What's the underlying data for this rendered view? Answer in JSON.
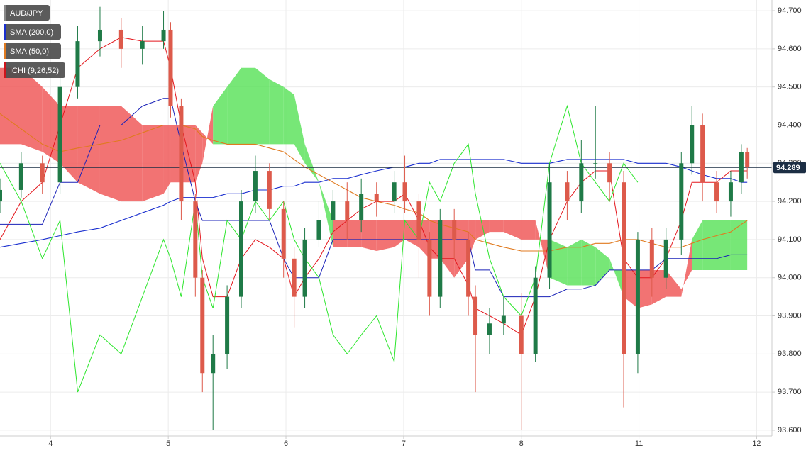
{
  "chart_data": {
    "type": "candlestick",
    "symbol": "AUD/JPY",
    "last_price": 94.289,
    "grid": true,
    "legend_position": "top-left",
    "up_color": "#1f7a47",
    "down_color": "#dd5a4b",
    "xlim": [
      -0.43,
      6.13
    ],
    "ylim": [
      93.585,
      94.728
    ],
    "xticks": [
      {
        "value": 0,
        "label": "4"
      },
      {
        "value": 1,
        "label": "5"
      },
      {
        "value": 2,
        "label": "6"
      },
      {
        "value": 3,
        "label": "7"
      },
      {
        "value": 4,
        "label": "8"
      },
      {
        "value": 5,
        "label": "11"
      },
      {
        "value": 6,
        "label": "12"
      }
    ],
    "yticks": [
      {
        "value": 93.6,
        "label": "93.600"
      },
      {
        "value": 93.7,
        "label": "93.700"
      },
      {
        "value": 93.8,
        "label": "93.800"
      },
      {
        "value": 93.9,
        "label": "93.900"
      },
      {
        "value": 94.0,
        "label": "94.000"
      },
      {
        "value": 94.1,
        "label": "94.100"
      },
      {
        "value": 94.2,
        "label": "94.200"
      },
      {
        "value": 94.3,
        "label": "94.300"
      },
      {
        "value": 94.4,
        "label": "94.400"
      },
      {
        "value": 94.5,
        "label": "94.500"
      },
      {
        "value": 94.6,
        "label": "94.600"
      },
      {
        "value": 94.7,
        "label": "94.700"
      }
    ],
    "x": [
      -0.43,
      -0.25,
      -0.07,
      0.08,
      0.23,
      0.42,
      0.6,
      0.78,
      0.96,
      1.02,
      1.11,
      1.23,
      1.29,
      1.38,
      1.5,
      1.62,
      1.74,
      1.86,
      1.98,
      2.07,
      2.16,
      2.28,
      2.4,
      2.52,
      2.64,
      2.77,
      2.92,
      3.01,
      3.13,
      3.22,
      3.31,
      3.43,
      3.55,
      3.61,
      3.73,
      3.85,
      4.0,
      4.12,
      4.24,
      4.39,
      4.51,
      4.63,
      4.75,
      4.87,
      4.99,
      5.11,
      5.23,
      5.36,
      5.45,
      5.54,
      5.66,
      5.78,
      5.87,
      5.92
    ],
    "open": [
      94.2,
      94.23,
      94.3,
      94.25,
      94.5,
      94.62,
      94.65,
      94.6,
      94.62,
      94.65,
      94.45,
      94.2,
      94.0,
      93.75,
      93.8,
      93.95,
      94.2,
      94.28,
      94.18,
      94.05,
      93.95,
      94.1,
      94.15,
      94.2,
      94.15,
      94.22,
      94.2,
      94.25,
      94.2,
      94.1,
      93.95,
      94.15,
      94.1,
      93.95,
      93.85,
      93.88,
      93.9,
      93.8,
      94.0,
      94.25,
      94.2,
      94.3,
      94.3,
      94.25,
      93.8,
      94.1,
      94.0,
      94.1,
      94.3,
      94.4,
      94.25,
      94.2,
      94.25,
      94.33
    ],
    "high": [
      94.26,
      94.33,
      94.32,
      94.54,
      94.66,
      94.71,
      94.68,
      94.66,
      94.7,
      94.67,
      94.47,
      94.22,
      94.02,
      93.85,
      93.98,
      94.23,
      94.32,
      94.3,
      94.2,
      94.08,
      94.13,
      94.2,
      94.23,
      94.25,
      94.26,
      94.25,
      94.28,
      94.32,
      94.22,
      94.12,
      94.18,
      94.18,
      94.12,
      93.98,
      93.92,
      93.95,
      93.96,
      94.03,
      94.3,
      94.28,
      94.36,
      94.45,
      94.33,
      94.28,
      94.12,
      94.13,
      94.13,
      94.33,
      94.45,
      94.43,
      94.28,
      94.28,
      94.35,
      94.34
    ],
    "low": [
      94.17,
      94.21,
      94.22,
      94.22,
      94.47,
      94.58,
      94.55,
      94.56,
      94.6,
      94.42,
      94.15,
      93.95,
      93.7,
      93.6,
      93.76,
      93.92,
      94.17,
      94.15,
      94.0,
      93.87,
      93.92,
      94.08,
      94.12,
      94.1,
      94.12,
      94.16,
      94.17,
      94.17,
      94.0,
      93.9,
      93.92,
      94.05,
      93.9,
      93.7,
      93.8,
      93.85,
      93.6,
      93.78,
      93.97,
      94.15,
      94.17,
      94.26,
      94.2,
      93.66,
      93.75,
      93.95,
      93.97,
      94.06,
      94.27,
      94.2,
      94.17,
      94.16,
      94.22,
      94.26
    ],
    "close": [
      94.23,
      94.3,
      94.25,
      94.5,
      94.62,
      94.65,
      94.6,
      94.62,
      94.65,
      94.45,
      94.2,
      94.0,
      93.75,
      93.8,
      93.95,
      94.2,
      94.28,
      94.18,
      94.05,
      93.95,
      94.1,
      94.15,
      94.2,
      94.15,
      94.22,
      94.2,
      94.25,
      94.2,
      94.1,
      93.95,
      94.15,
      94.1,
      93.95,
      93.85,
      93.88,
      93.9,
      93.8,
      94.0,
      94.25,
      94.2,
      94.3,
      94.3,
      94.25,
      93.8,
      94.1,
      94.0,
      94.1,
      94.3,
      94.4,
      94.25,
      94.2,
      94.25,
      94.33,
      94.29
    ],
    "indicators": [
      {
        "name": "SMA (200,0)",
        "color": "#1a2fcf",
        "values": [
          94.08,
          94.09,
          94.1,
          94.11,
          94.12,
          94.13,
          94.15,
          94.17,
          94.19,
          94.2,
          94.21,
          94.21,
          94.21,
          94.21,
          94.22,
          94.22,
          94.23,
          94.23,
          94.24,
          94.24,
          94.25,
          94.25,
          94.26,
          94.26,
          94.27,
          94.28,
          94.29,
          94.29,
          94.3,
          94.3,
          94.31,
          94.31,
          94.31,
          94.31,
          94.31,
          94.31,
          94.3,
          94.3,
          94.3,
          94.31,
          94.31,
          94.31,
          94.31,
          94.31,
          94.3,
          94.3,
          94.3,
          94.29,
          94.28,
          94.27,
          94.26,
          94.26,
          94.25,
          94.25
        ]
      },
      {
        "name": "SMA (50,0)",
        "color": "#e07a1f",
        "values": [
          94.43,
          94.39,
          94.35,
          94.33,
          94.34,
          94.35,
          94.36,
          94.38,
          94.4,
          94.4,
          94.4,
          94.39,
          94.37,
          94.36,
          94.35,
          94.35,
          94.35,
          94.34,
          94.33,
          94.31,
          94.29,
          94.27,
          94.25,
          94.23,
          94.21,
          94.2,
          94.19,
          94.18,
          94.17,
          94.15,
          94.14,
          94.13,
          94.12,
          94.1,
          94.09,
          94.08,
          94.07,
          94.07,
          94.07,
          94.08,
          94.08,
          94.09,
          94.09,
          94.1,
          94.1,
          94.09,
          94.08,
          94.08,
          94.09,
          94.1,
          94.11,
          94.12,
          94.14,
          94.15
        ]
      },
      {
        "name": "ICHI (9,26,52)",
        "color": "#d0141b",
        "lines": [
          {
            "color": "#e3161c",
            "values": [
              94.1,
              94.2,
              94.25,
              94.4,
              94.55,
              94.6,
              94.63,
              94.62,
              94.62,
              94.55,
              94.4,
              94.25,
              94.05,
              93.95,
              93.95,
              94.05,
              94.1,
              94.08,
              94.05,
              93.95,
              94.0,
              94.05,
              94.12,
              94.15,
              94.18,
              94.2,
              94.2,
              94.22,
              94.15,
              94.08,
              94.05,
              94.05,
              93.98,
              93.92,
              93.9,
              93.88,
              93.85,
              93.95,
              94.1,
              94.2,
              94.25,
              94.28,
              94.28,
              94.05,
              94.0,
              94.0,
              94.05,
              94.15,
              94.25,
              94.25,
              94.25,
              94.28,
              94.28,
              94.28
            ]
          },
          {
            "color": "#1a22b8",
            "values": [
              94.14,
              94.14,
              94.14,
              94.25,
              94.25,
              94.4,
              94.4,
              94.45,
              94.47,
              94.47,
              94.35,
              94.2,
              94.15,
              94.15,
              94.15,
              94.15,
              94.15,
              94.15,
              94.05,
              94.0,
              94.0,
              94.0,
              94.1,
              94.1,
              94.1,
              94.1,
              94.1,
              94.1,
              94.1,
              94.1,
              94.1,
              94.1,
              94.1,
              94.02,
              94.02,
              93.95,
              93.95,
              93.95,
              93.95,
              93.97,
              93.97,
              93.98,
              94.02,
              94.02,
              94.02,
              94.02,
              94.05,
              94.05,
              94.05,
              94.05,
              94.05,
              94.06,
              94.06,
              94.06
            ]
          },
          {
            "color": "#2ee62e",
            "values": [
              94.3,
              94.2,
              94.05,
              94.15,
              93.7,
              93.85,
              93.8,
              93.95,
              94.1,
              94.05,
              93.95,
              94.2,
              94.0,
              93.92,
              94.15,
              94.1,
              94.2,
              94.15,
              94.2,
              94.1,
              94.05,
              94.0,
              93.85,
              93.8,
              93.85,
              93.9,
              93.78,
              94.15,
              94.1,
              94.25,
              94.2,
              94.3,
              94.35,
              94.22,
              94.05,
              93.95,
              93.9,
              94.0,
              94.3,
              94.45,
              94.3,
              94.25,
              94.2,
              94.3,
              94.25,
              null,
              null,
              null,
              null,
              null,
              null,
              null,
              null,
              null
            ]
          }
        ],
        "cloud": {
          "up_color": "#5fe35f",
          "down_color": "#f05a5a",
          "span_a": [
            94.35,
            94.35,
            94.33,
            94.3,
            94.25,
            94.22,
            94.2,
            94.2,
            94.22,
            94.25,
            94.25,
            94.25,
            94.3,
            94.45,
            94.5,
            94.55,
            94.55,
            94.52,
            94.5,
            94.48,
            94.35,
            94.25,
            94.08,
            94.08,
            94.08,
            94.07,
            94.08,
            94.1,
            94.08,
            94.05,
            94.05,
            94.0,
            94.05,
            94.1,
            94.12,
            94.12,
            94.1,
            94.1,
            94.1,
            94.08,
            94.1,
            94.08,
            94.05,
            93.95,
            93.92,
            93.93,
            93.95,
            93.95,
            94.1,
            94.15,
            94.15,
            94.15,
            94.15,
            94.15
          ],
          "span_b": [
            94.55,
            94.55,
            94.5,
            94.45,
            94.45,
            94.45,
            94.45,
            94.4,
            94.4,
            94.4,
            94.4,
            94.4,
            94.38,
            94.35,
            94.35,
            94.35,
            94.35,
            94.35,
            94.35,
            94.35,
            94.3,
            94.25,
            94.15,
            94.15,
            94.15,
            94.15,
            94.15,
            94.15,
            94.15,
            94.15,
            94.15,
            94.15,
            94.15,
            94.15,
            94.15,
            94.15,
            94.15,
            94.15,
            94.0,
            93.98,
            93.98,
            93.98,
            94.02,
            94.02,
            94.02,
            94.02,
            94.02,
            93.97,
            94.02,
            94.02,
            94.02,
            94.02,
            94.02,
            94.02
          ]
        }
      }
    ]
  }
}
